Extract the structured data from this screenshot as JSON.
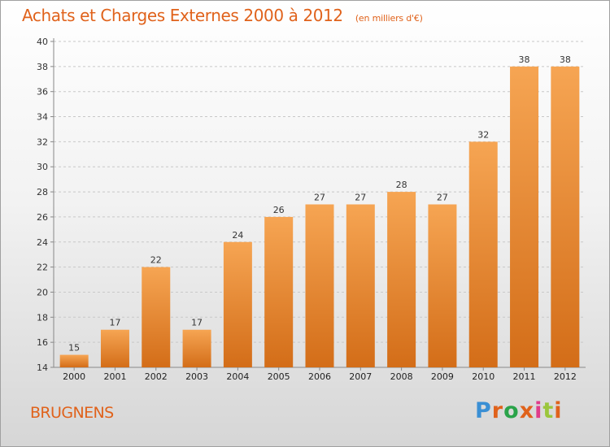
{
  "header": {
    "title": "Achats et Charges Externes 2000 à 2012",
    "unit_note": "(en milliers d'€)"
  },
  "footer": {
    "commune": "BRUGNENS",
    "logo_text": "Proxiti",
    "logo_colors": [
      "#3a8fd4",
      "#e0621b",
      "#2aa34a",
      "#e0621b",
      "#e03c8a",
      "#9bc63c",
      "#e0621b"
    ]
  },
  "colors": {
    "accent": "#e0621b",
    "bar_light": "#f6a553",
    "bar_dark": "#d36d18",
    "grid": "#c8c8c8"
  },
  "chart_data": {
    "type": "bar",
    "title": "Achats et Charges Externes 2000 à 2012",
    "subtitle": "(en milliers d'€)",
    "categories": [
      "2000",
      "2001",
      "2002",
      "2003",
      "2004",
      "2005",
      "2006",
      "2007",
      "2008",
      "2009",
      "2010",
      "2011",
      "2012"
    ],
    "values": [
      15,
      17,
      22,
      17,
      24,
      26,
      27,
      27,
      28,
      27,
      32,
      38,
      38
    ],
    "ylim": [
      14,
      40
    ],
    "yticks": [
      14,
      16,
      18,
      20,
      22,
      24,
      26,
      28,
      30,
      32,
      34,
      36,
      38,
      40
    ],
    "grid": "horizontal dashed",
    "xlabel": "",
    "ylabel": ""
  }
}
